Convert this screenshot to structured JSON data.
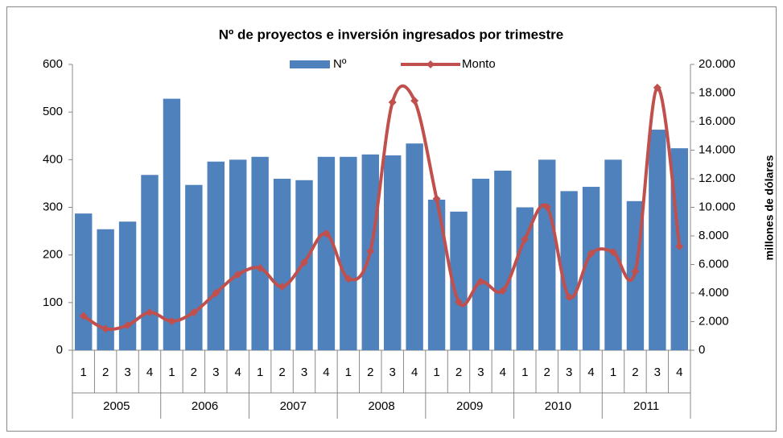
{
  "chart_data": {
    "type": "bar-line",
    "title": "Nº de proyectos e inversión ingresados por trimestre",
    "y2_label": "millones de dólares",
    "categories": [
      "1",
      "2",
      "3",
      "4",
      "1",
      "2",
      "3",
      "4",
      "1",
      "2",
      "3",
      "4",
      "1",
      "2",
      "3",
      "4",
      "1",
      "2",
      "3",
      "4",
      "1",
      "2",
      "3",
      "4",
      "1",
      "2",
      "3",
      "4"
    ],
    "groups": [
      "2005",
      "2006",
      "2007",
      "2008",
      "2009",
      "2010",
      "2011"
    ],
    "series": [
      {
        "name": "Nº",
        "type": "bar",
        "color": "#4f81bd",
        "axis": "y",
        "values": [
          287,
          254,
          270,
          368,
          528,
          347,
          396,
          400,
          406,
          360,
          357,
          406,
          406,
          411,
          409,
          434,
          316,
          291,
          360,
          377,
          300,
          400,
          334,
          343,
          400,
          313,
          463,
          424
        ]
      },
      {
        "name": "Monto",
        "type": "line",
        "color": "#c0504d",
        "axis": "y2",
        "smooth": true,
        "marker": "diamond",
        "values": [
          2400,
          1500,
          1750,
          2650,
          2030,
          2650,
          4000,
          5300,
          5750,
          4450,
          6150,
          8170,
          5000,
          6930,
          17350,
          17460,
          10600,
          3380,
          4800,
          4170,
          7770,
          10030,
          3720,
          6760,
          6870,
          5520,
          18370,
          7270
        ]
      }
    ],
    "ylim": [
      0,
      600
    ],
    "yticks": [
      0,
      100,
      200,
      300,
      400,
      500,
      600
    ],
    "y2lim": [
      0,
      20000
    ],
    "y2ticks": [
      {
        "value": 0,
        "label": "0"
      },
      {
        "value": 2000,
        "label": "2.000"
      },
      {
        "value": 4000,
        "label": "4.000"
      },
      {
        "value": 6000,
        "label": "6.000"
      },
      {
        "value": 8000,
        "label": "8.000"
      },
      {
        "value": 10000,
        "label": "10.000"
      },
      {
        "value": 12000,
        "label": "12.000"
      },
      {
        "value": 14000,
        "label": "14.000"
      },
      {
        "value": 16000,
        "label": "16.000"
      },
      {
        "value": 18000,
        "label": "18.000"
      },
      {
        "value": 20000,
        "label": "20.000"
      }
    ],
    "legend": "top"
  }
}
